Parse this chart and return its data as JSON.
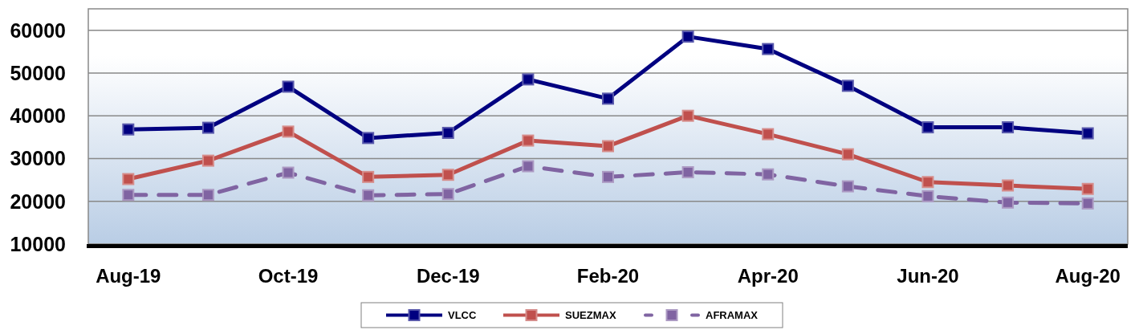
{
  "chart_data": {
    "type": "line",
    "categories": [
      "Aug-19",
      null,
      "Oct-19",
      null,
      "Dec-19",
      null,
      "Feb-20",
      null,
      "Apr-20",
      null,
      "Jun-20",
      null,
      "Aug-20"
    ],
    "series": [
      {
        "name": "VLCC",
        "color": "#000080",
        "line_style": "solid",
        "values": [
          36800,
          37200,
          46800,
          34800,
          36000,
          48500,
          44000,
          58500,
          55600,
          47000,
          37300,
          37300,
          35900
        ]
      },
      {
        "name": "SUEZMAX",
        "color": "#c0504d",
        "line_style": "solid",
        "values": [
          25200,
          29500,
          36300,
          25700,
          26200,
          34200,
          32900,
          40000,
          35700,
          31000,
          24500,
          23700,
          22900
        ]
      },
      {
        "name": "AFRAMAX",
        "color": "#8064a2",
        "line_style": "dashed",
        "values": [
          21500,
          21500,
          26700,
          21400,
          21700,
          28200,
          25700,
          26800,
          26300,
          23500,
          21200,
          19700,
          19500
        ]
      }
    ],
    "ylim": [
      10000,
      65000
    ],
    "yticks": [
      10000,
      20000,
      30000,
      40000,
      50000,
      60000
    ],
    "grid": "y",
    "legend": "bottom",
    "marker": "square"
  }
}
